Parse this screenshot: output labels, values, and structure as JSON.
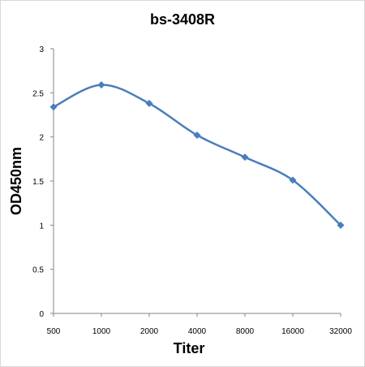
{
  "chart_data": {
    "type": "line",
    "title": "bs-3408R",
    "xlabel": "Titer",
    "ylabel": "OD450nm",
    "categories": [
      "500",
      "1000",
      "2000",
      "4000",
      "8000",
      "16000",
      "32000"
    ],
    "series": [
      {
        "values": [
          2.34,
          2.59,
          2.38,
          2.02,
          1.77,
          1.51,
          1.0
        ]
      }
    ],
    "yticks": [
      "0",
      "0.5",
      "1",
      "1.5",
      "2",
      "2.5",
      "3"
    ],
    "ylim": [
      0,
      3
    ],
    "grid": false,
    "legend": "none",
    "line_color": "#4a7ebb"
  }
}
